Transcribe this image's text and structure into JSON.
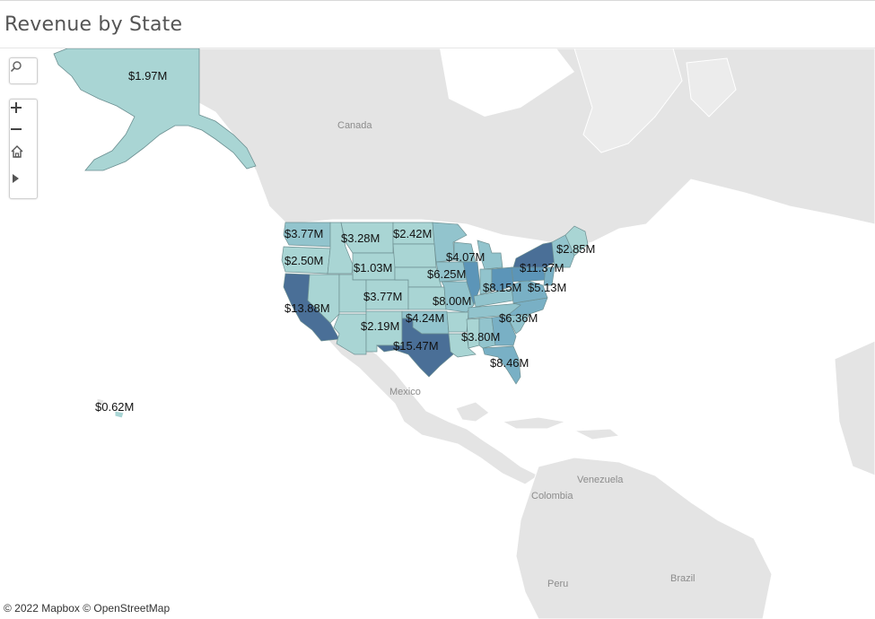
{
  "title": "Revenue by State",
  "attribution": "© 2022 Mapbox  © OpenStreetMap",
  "controls": {
    "search_icon": "search-icon",
    "zoom_in_icon": "plus-icon",
    "zoom_out_icon": "minus-icon",
    "home_icon": "home-icon",
    "expand_icon": "play-icon"
  },
  "place_labels": {
    "canada": "Canada",
    "mexico": "Mexico",
    "venezuela": "Venezuela",
    "colombia": "Colombia",
    "peru": "Peru",
    "brazil": "Brazil"
  },
  "colors": {
    "lightest": "#a9d5d4",
    "light": "#92c4cd",
    "mid": "#79b0c5",
    "mid_dark": "#5c95b8",
    "darkest": "#4a6f97",
    "land": "#e4e4e4",
    "border": "#ffffff"
  },
  "chart_data": {
    "type": "map",
    "measure": "Revenue",
    "labels": {
      "alaska": "$1.97M",
      "hawaii": "$0.62M",
      "washington": "$3.77M",
      "oregon": "$2.50M",
      "california": "$13.88M",
      "montana": "$3.28M",
      "north_dakota": "$2.42M",
      "utah": "$1.03M",
      "colorado": "$3.77M",
      "new_mexico": "$2.19M",
      "oklahoma": "$4.24M",
      "texas": "$15.47M",
      "iowa": "$6.25M",
      "wisconsin": "$4.07M",
      "illinois": "$8.00M",
      "ohio": "$8.15M",
      "pennsylvania": "$5.13M",
      "new_york": "$11.37M",
      "maine": "$2.85M",
      "north_carolina": "$6.36M",
      "alabama": "$3.80M",
      "florida": "$8.46M"
    }
  }
}
